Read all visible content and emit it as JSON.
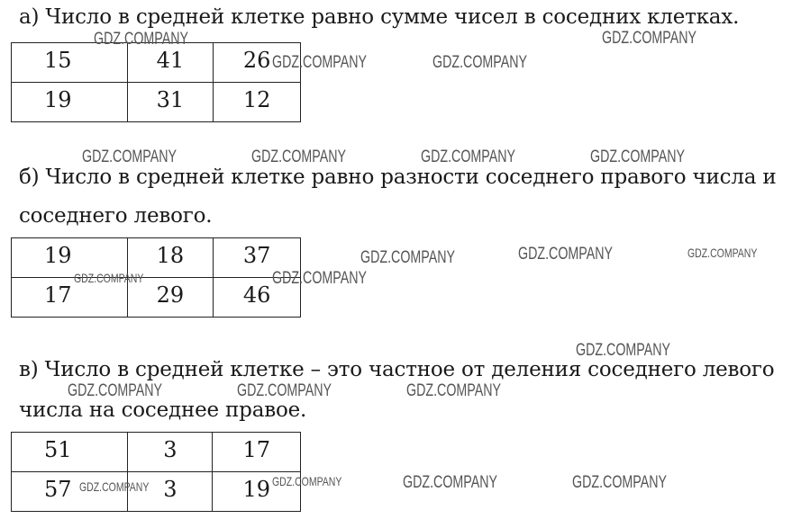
{
  "tasks": [
    {
      "lines": [
        "а) Число в средней клетке равно сумме чисел в соседних клетках."
      ],
      "rows": [
        [
          "15",
          "41",
          "26"
        ],
        [
          "19",
          "31",
          "12"
        ]
      ]
    },
    {
      "lines": [
        "б) Число в средней клетке равно разности соседнего правого числа и",
        "соседнего левого."
      ],
      "rows": [
        [
          "19",
          "18",
          "37"
        ],
        [
          "17",
          "29",
          "46"
        ]
      ]
    },
    {
      "lines": [
        "в) Число в средней клетке – это частное от деления соседнего левого",
        "числа на соседнее правое."
      ],
      "rows": [
        [
          "51",
          "3",
          "17"
        ],
        [
          "57",
          "3",
          "19"
        ]
      ]
    }
  ],
  "watermark": "GDZ.COMPANY"
}
